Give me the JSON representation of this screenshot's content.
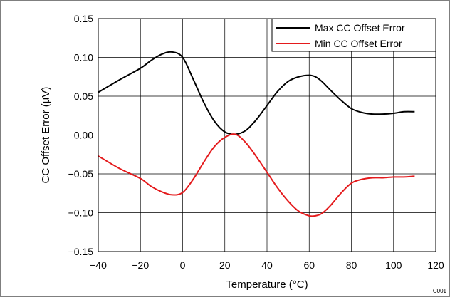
{
  "chart_data": {
    "type": "line",
    "xlabel": "Temperature (°C)",
    "ylabel": "CC Offset Error (µV)",
    "xlim": [
      -40,
      120
    ],
    "ylim": [
      -0.15,
      0.15
    ],
    "x_ticks": [
      -40,
      -20,
      0,
      20,
      40,
      60,
      80,
      100,
      120
    ],
    "x_tick_labels": [
      "−40",
      "−20",
      "0",
      "20",
      "40",
      "60",
      "80",
      "100",
      "120"
    ],
    "y_ticks": [
      -0.15,
      -0.1,
      -0.05,
      0.0,
      0.05,
      0.1,
      0.15
    ],
    "y_tick_labels": [
      "−0.15",
      "−0.10",
      "−0.05",
      "0.00",
      "0.05",
      "0.10",
      "0.15"
    ],
    "grid": true,
    "legend_position": "top-right",
    "series": [
      {
        "name": "Max CC Offset Error",
        "color": "#000000",
        "x": [
          -40,
          -30,
          -20,
          -15,
          -10,
          -5,
          0,
          5,
          10,
          15,
          20,
          25,
          30,
          35,
          40,
          45,
          50,
          55,
          60,
          63,
          66,
          70,
          75,
          80,
          85,
          90,
          95,
          100,
          105,
          110
        ],
        "y": [
          0.055,
          0.071,
          0.086,
          0.096,
          0.104,
          0.107,
          0.1,
          0.072,
          0.042,
          0.018,
          0.004,
          0.001,
          0.006,
          0.02,
          0.038,
          0.056,
          0.069,
          0.075,
          0.077,
          0.075,
          0.069,
          0.058,
          0.045,
          0.034,
          0.029,
          0.027,
          0.027,
          0.028,
          0.03,
          0.03
        ]
      },
      {
        "name": "Min CC Offset Error",
        "color": "#e41a1c",
        "x": [
          -40,
          -30,
          -20,
          -15,
          -10,
          -5,
          0,
          5,
          10,
          15,
          20,
          25,
          30,
          35,
          40,
          45,
          50,
          55,
          60,
          63,
          66,
          70,
          75,
          80,
          85,
          90,
          95,
          100,
          105,
          110
        ],
        "y": [
          -0.027,
          -0.043,
          -0.056,
          -0.066,
          -0.073,
          -0.077,
          -0.074,
          -0.057,
          -0.035,
          -0.015,
          -0.003,
          0.001,
          -0.01,
          -0.028,
          -0.048,
          -0.068,
          -0.085,
          -0.098,
          -0.104,
          -0.104,
          -0.101,
          -0.091,
          -0.075,
          -0.062,
          -0.057,
          -0.055,
          -0.055,
          -0.054,
          -0.054,
          -0.053
        ]
      }
    ],
    "watermark": "C001"
  }
}
